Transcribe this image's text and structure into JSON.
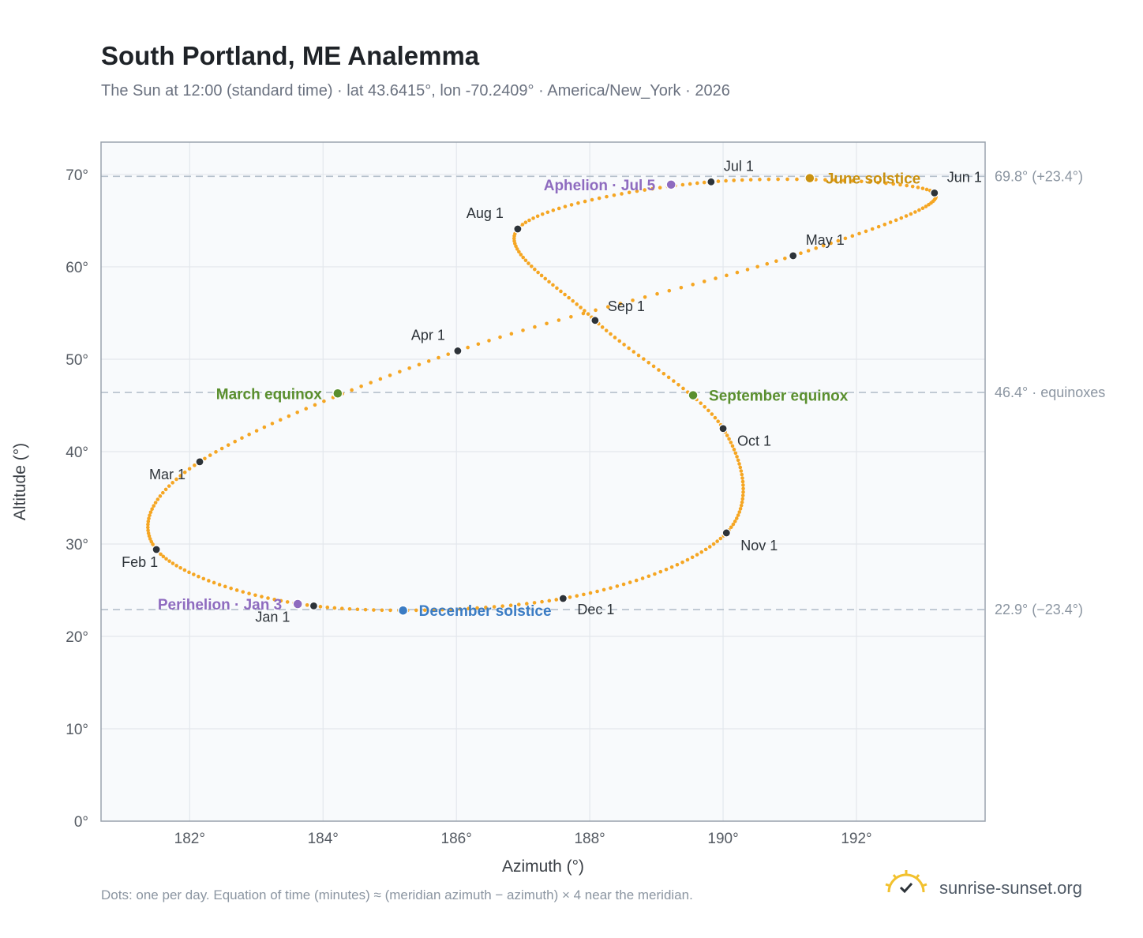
{
  "title": "South Portland, ME Analemma",
  "subtitle": "The Sun at 12:00 (standard time) · lat 43.6415°, lon -70.2409° · America/New_York · 2026",
  "footnote": "Dots: one per day. Equation of time (minutes) ≈ (meridian azimuth − azimuth) × 4 near the meridian.",
  "brand": {
    "text": "sunrise-sunset.org",
    "icon": "sun-logo-icon"
  },
  "chart_data": {
    "type": "scatter",
    "title": "South Portland, ME Analemma",
    "xlabel": "Azimuth (°)",
    "ylabel": "Altitude (°)",
    "xlim": [
      180.67,
      193.93
    ],
    "ylim": [
      0,
      73.5
    ],
    "xticks": [
      182,
      184,
      186,
      188,
      190,
      192
    ],
    "xtick_labels": [
      "182°",
      "184°",
      "186°",
      "188°",
      "190°",
      "192°"
    ],
    "yticks": [
      0,
      10,
      20,
      30,
      40,
      50,
      60,
      70
    ],
    "ytick_labels": [
      "0°",
      "10°",
      "20°",
      "30°",
      "40°",
      "50°",
      "60°",
      "70°"
    ],
    "grid": true,
    "series_color": "#f5a623",
    "monthly_keypoints": [
      {
        "label": "Jan 1",
        "az": 183.86,
        "alt": 23.3
      },
      {
        "label": "Feb 1",
        "az": 181.5,
        "alt": 29.4
      },
      {
        "label": "Mar 1",
        "az": 182.15,
        "alt": 38.9
      },
      {
        "label": "Apr 1",
        "az": 186.02,
        "alt": 50.9
      },
      {
        "label": "May 1",
        "az": 191.05,
        "alt": 61.2
      },
      {
        "label": "Jun 1",
        "az": 193.17,
        "alt": 68.0
      },
      {
        "label": "Jul 1",
        "az": 189.82,
        "alt": 69.2
      },
      {
        "label": "Aug 1",
        "az": 186.92,
        "alt": 64.1
      },
      {
        "label": "Sep 1",
        "az": 188.08,
        "alt": 54.2
      },
      {
        "label": "Oct 1",
        "az": 190.0,
        "alt": 42.5
      },
      {
        "label": "Nov 1",
        "az": 190.05,
        "alt": 31.2
      },
      {
        "label": "Dec 1",
        "az": 187.6,
        "alt": 24.1
      }
    ],
    "events": [
      {
        "label": "Perihelion · Jan 3",
        "az": 183.62,
        "alt": 23.5,
        "color": "#8e6bbf"
      },
      {
        "label": "March equinox",
        "az": 184.22,
        "alt": 46.3,
        "color": "#5a8f2e"
      },
      {
        "label": "June solstice",
        "az": 191.3,
        "alt": 69.6,
        "color": "#c99110"
      },
      {
        "label": "Aphelion · Jul 5",
        "az": 189.22,
        "alt": 68.9,
        "color": "#8e6bbf"
      },
      {
        "label": "September equinox",
        "az": 189.55,
        "alt": 46.1,
        "color": "#5a8f2e"
      },
      {
        "label": "December solstice",
        "az": 185.2,
        "alt": 22.8,
        "color": "#3b7cc4"
      }
    ],
    "reference_lines": [
      {
        "alt": 69.8,
        "label": "69.8° (+23.4°)"
      },
      {
        "alt": 46.4,
        "label": "46.4° · equinoxes"
      },
      {
        "alt": 22.9,
        "label": "22.9° (−23.4°)"
      }
    ]
  }
}
